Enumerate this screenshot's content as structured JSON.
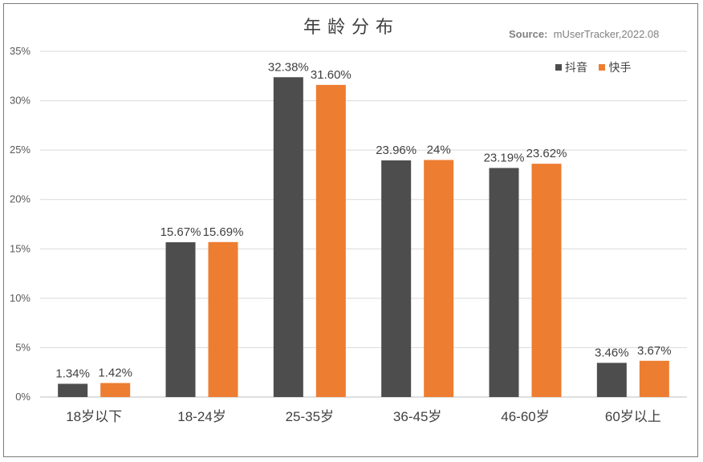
{
  "chart_data": {
    "type": "bar",
    "title": "年龄分布",
    "source_label": "Source:",
    "source_text": "mUserTracker,2022.08",
    "categories": [
      "18岁以下",
      "18-24岁",
      "25-35岁",
      "36-45岁",
      "46-60岁",
      "60岁以上"
    ],
    "series": [
      {
        "name": "抖音",
        "color": "#4d4d4d",
        "values": [
          1.34,
          15.67,
          32.38,
          23.96,
          23.19,
          3.46
        ],
        "labels": [
          "1.34%",
          "15.67%",
          "32.38%",
          "23.96%",
          "23.19%",
          "3.46%"
        ]
      },
      {
        "name": "快手",
        "color": "#ed7d31",
        "values": [
          1.42,
          15.69,
          31.6,
          24,
          23.62,
          3.67
        ],
        "labels": [
          "1.42%",
          "15.69%",
          "31.60%",
          "24%",
          "23.62%",
          "3.67%"
        ]
      }
    ],
    "yticks": [
      "0%",
      "5%",
      "10%",
      "15%",
      "20%",
      "25%",
      "30%",
      "35%"
    ],
    "ylim": [
      0,
      35
    ],
    "ystep": 5,
    "grid": true,
    "legend_position": "top-right"
  }
}
